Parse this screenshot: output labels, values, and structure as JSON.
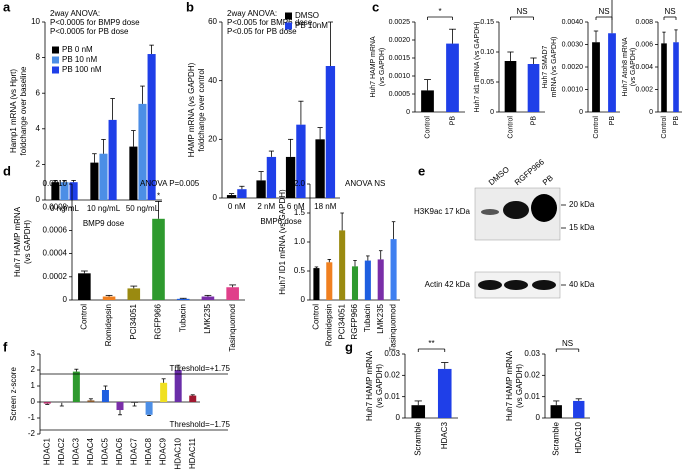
{
  "chart_data": [
    {
      "type": "bar",
      "panel": "a",
      "categories": [
        "0 ng/mL",
        "10 ng/mL",
        "50 ng/mL"
      ],
      "series": [
        {
          "name": "PB 0 nM",
          "color": "#000000",
          "values": [
            1,
            2.1,
            3
          ],
          "errors": [
            0.1,
            0.5,
            0.9
          ]
        },
        {
          "name": "PB 10 nM",
          "color": "#4c8ee6",
          "values": [
            1,
            2.6,
            5.4
          ],
          "errors": [
            0.1,
            0.8,
            1.0
          ]
        },
        {
          "name": "PB 100 nM",
          "color": "#1f3fe8",
          "values": [
            1,
            4.5,
            8.2
          ],
          "errors": [
            0.1,
            1.2,
            0.5
          ]
        }
      ],
      "ylim": [
        0,
        10
      ],
      "yticks": [
        0,
        2,
        4,
        6,
        8,
        10
      ],
      "ylabel": [
        "Hamp1 mRNA (vs Hprt)",
        "foldchange over baseline"
      ],
      "xlabel": "BMP9 dose",
      "annotation": [
        "2way ANOVA:",
        "P<0.0005 for BMP9 dose",
        "P<0.0005 for PB dose"
      ]
    },
    {
      "type": "bar",
      "panel": "b",
      "categories": [
        "0 nM",
        "2 nM",
        "6 nM",
        "18 nM"
      ],
      "series": [
        {
          "name": "DMSO",
          "color": "#000000",
          "values": [
            1,
            6,
            14,
            20
          ],
          "errors": [
            0.5,
            3,
            6,
            4
          ]
        },
        {
          "name": "PB 10nM",
          "color": "#1f3fe8",
          "values": [
            3,
            14,
            25,
            45
          ],
          "errors": [
            1,
            2,
            8,
            15
          ]
        }
      ],
      "ylim": [
        0,
        60
      ],
      "yticks": [
        0,
        20,
        40,
        60
      ],
      "ylabel": [
        "HAMP mRNA (vs GAPDH)",
        "foldchange over control"
      ],
      "xlabel": "BMP6 dose",
      "annotation": [
        "2way ANOVA:",
        "P<0.005 for BMP6 dose",
        "P<0.05 for PB dose"
      ]
    },
    {
      "type": "bar",
      "panel": "c",
      "categories": [
        "Control",
        "PB"
      ],
      "colors": [
        "#000000",
        "#1f3fe8"
      ],
      "values": [
        0.0006,
        0.0019
      ],
      "errors": [
        0.0003,
        0.0004
      ],
      "ylim": [
        0,
        0.0025
      ],
      "yticks": [
        0,
        0.0005,
        {
          "value": 0.001,
          "label": "0.0010"
        },
        0.0015,
        {
          "value": 0.002,
          "label": "0.0020"
        },
        0.0025
      ],
      "ylabel": [
        "Huh7 HAMP mRNA",
        "(vs GAPDH)"
      ],
      "sig": "*",
      "label_rotation": -90
    },
    {
      "type": "bar",
      "categories": [
        "Control",
        "PB"
      ],
      "colors": [
        "#000000",
        "#1f3fe8"
      ],
      "values": [
        0.085,
        0.08
      ],
      "errors": [
        0.015,
        0.01
      ],
      "ylim": [
        0,
        0.15
      ],
      "yticks": [
        0,
        0.05,
        {
          "value": 0.1,
          "label": "0.10"
        },
        0.15
      ],
      "ylabel": [
        "Huh7 Id1 mRNA (vs GAPDH)"
      ],
      "sig": "NS",
      "label_rotation": -90
    },
    {
      "type": "bar",
      "categories": [
        "Control",
        "PB"
      ],
      "colors": [
        "#000000",
        "#1f3fe8"
      ],
      "values": [
        0.0031,
        0.0035
      ],
      "errors": [
        0.0005,
        0.0015
      ],
      "ylim": [
        0,
        0.004
      ],
      "yticks": [
        0,
        {
          "value": 0.001,
          "label": "0.0010"
        },
        {
          "value": 0.002,
          "label": "0.0020"
        },
        {
          "value": 0.003,
          "label": "0.0030"
        },
        {
          "value": 0.004,
          "label": "0.0040"
        }
      ],
      "ylabel": [
        "Huh7 SMAD7",
        "mRNA (vs GAPDH)"
      ],
      "sig": "NS",
      "label_rotation": -90
    },
    {
      "type": "bar",
      "categories": [
        "Control",
        "PB"
      ],
      "colors": [
        "#000000",
        "#1f3fe8"
      ],
      "values": [
        0.0061,
        0.0062
      ],
      "errors": [
        0.001,
        0.0011
      ],
      "ylim": [
        0,
        0.008
      ],
      "yticks": [
        0,
        0.002,
        0.004,
        0.006,
        0.008
      ],
      "ylabel": [
        "Huh7 Atoh8 mRNA",
        "(vs GAPDH)"
      ],
      "sig": "NS",
      "label_rotation": -90
    },
    {
      "type": "bar",
      "panel": "d",
      "categories": [
        "Control",
        "Romidepsin",
        "PCI34051",
        "RGFP966",
        "Tubacin",
        "LMK235",
        "Tasinquomod"
      ],
      "colors": [
        "#000000",
        "#f08020",
        "#9a8a10",
        "#2e9a2e",
        "#1e5ee0",
        "#7a2ea8",
        "#e0408a"
      ],
      "values": [
        0.00023,
        3e-05,
        0.0001,
        0.0007,
        1e-05,
        3e-05,
        0.00011
      ],
      "errors": [
        2e-05,
        1e-05,
        2e-05,
        0.00015,
        5e-06,
        1e-05,
        2e-05
      ],
      "ylim": [
        0,
        0.001
      ],
      "yticks": [
        0,
        0.0002,
        0.0004,
        0.0006,
        0.0008,
        {
          "value": 0.001,
          "label": "0.0010"
        }
      ],
      "ylabel": [
        "Huh7 HAMP mRNA",
        "(vs GAPDH)"
      ],
      "annotation": [
        "ANOVA P=0.005"
      ],
      "marks": [
        {
          "category": "RGFP966",
          "text": "*"
        }
      ],
      "label_rotation": -90
    },
    {
      "type": "bar",
      "categories": [
        "Control",
        "Romidepsin",
        "PCI34051",
        "RGFP966",
        "Tubacin",
        "LMK235",
        "Tasinquomod"
      ],
      "colors": [
        "#000000",
        "#f08020",
        "#9a8a10",
        "#2e9a2e",
        "#1e5ee0",
        "#7a2ea8",
        "#3f7ff0"
      ],
      "values": [
        0.55,
        0.65,
        1.2,
        0.58,
        0.68,
        0.7,
        1.05
      ],
      "errors": [
        0.02,
        0.05,
        0.3,
        0.1,
        0.08,
        0.15,
        0.3
      ],
      "ylim": [
        0,
        2
      ],
      "yticks": [
        0,
        0.5,
        {
          "value": 1,
          "label": "1.0"
        },
        1.5,
        {
          "value": 2,
          "label": "2.0"
        }
      ],
      "ylabel": [
        "Huh7 ID1 mRNA (vs GAPDH)"
      ],
      "annotation": [
        "ANOVA NS"
      ],
      "label_rotation": -90
    },
    {
      "type": "blot",
      "panel": "e",
      "lanes": [
        "DMSO",
        "RGFP966",
        "PB"
      ],
      "bands": [
        "H3K9ac 17 kDa",
        "Actin 42 kDa"
      ],
      "markers": [
        "20 kDa",
        "15 kDa",
        "40 kDa"
      ]
    },
    {
      "type": "bar",
      "panel": "f",
      "categories": [
        "HDAC1",
        "HDAC2",
        "HDAC3",
        "HDAC4",
        "HDAC5",
        "HDAC6",
        "HDAC7",
        "HDAC8",
        "HDAC9",
        "HDAC10",
        "HDAC11"
      ],
      "colors": [
        "#b0306a",
        "#888888",
        "#2e9a2e",
        "#8b5a2b",
        "#1e5ee0",
        "#7a2ea8",
        "#333333",
        "#4c8ee6",
        "#f0e020",
        "#6a2ea8",
        "#a01830"
      ],
      "values": [
        -0.1,
        -0.05,
        1.9,
        0.1,
        0.75,
        -0.5,
        -0.05,
        -0.8,
        1.2,
        2.0,
        0.4
      ],
      "errors": [
        0.05,
        0.2,
        0.15,
        0.1,
        0.25,
        0.3,
        0.2,
        0.05,
        0.25,
        0.3,
        0.05
      ],
      "ylim": [
        -2,
        3
      ],
      "yticks": [
        -2,
        -1,
        0,
        1,
        2,
        3
      ],
      "ylabel": [
        "Screen z-score"
      ],
      "thresholds": [
        {
          "value": 1.75,
          "label": "Threshold=+1.75"
        },
        {
          "value": -1.75,
          "label": "Threshold=−1.75"
        }
      ],
      "label_rotation": -90
    },
    {
      "type": "bar",
      "panel": "g",
      "categories": [
        "Scramble",
        "HDAC3"
      ],
      "colors": [
        "#000000",
        "#1f3fe8"
      ],
      "values": [
        0.006,
        0.023
      ],
      "errors": [
        0.002,
        0.003
      ],
      "ylim": [
        0,
        0.03
      ],
      "yticks": [
        0,
        0.01,
        0.02,
        0.03
      ],
      "ylabel": [
        "Huh7 HAMP mRNA",
        "(vs GAPDH)"
      ],
      "sig": "**",
      "label_rotation": -90
    },
    {
      "type": "bar",
      "categories": [
        "Scramble",
        "HDAC10"
      ],
      "colors": [
        "#000000",
        "#1f3fe8"
      ],
      "values": [
        0.006,
        0.008
      ],
      "errors": [
        0.002,
        0.001
      ],
      "ylim": [
        0,
        0.03
      ],
      "yticks": [
        0,
        0.01,
        0.02,
        0.03
      ],
      "ylabel": [
        "Huh7 HAMP mRNA",
        "(vs GAPDH)"
      ],
      "sig": "NS",
      "label_rotation": -90
    }
  ]
}
